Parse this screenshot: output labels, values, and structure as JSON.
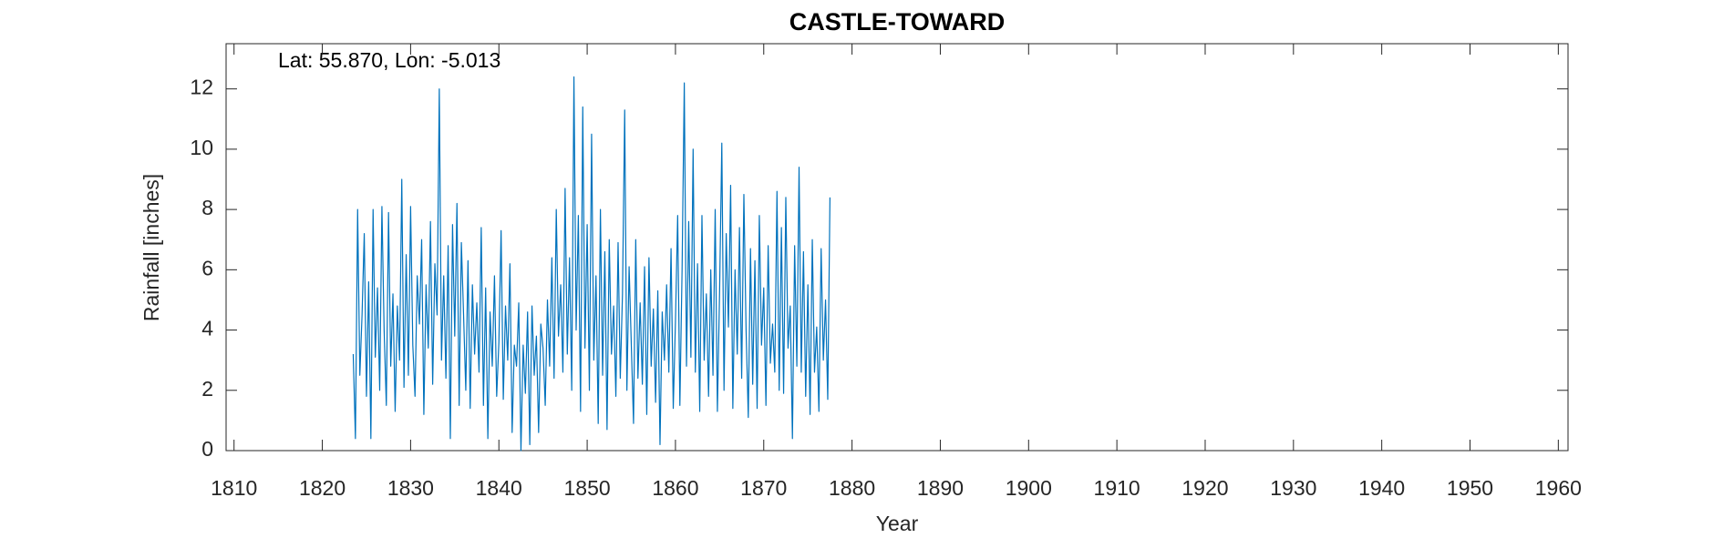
{
  "chart_data": {
    "type": "line",
    "title": "CASTLE-TOWARD",
    "annotation": "Lat: 55.870, Lon: -5.013",
    "xlabel": "Year",
    "ylabel": "Rainfall [inches]",
    "xlim": [
      1809.1,
      1961.1
    ],
    "xticks": [
      1810,
      1820,
      1830,
      1840,
      1850,
      1860,
      1870,
      1880,
      1890,
      1900,
      1910,
      1920,
      1930,
      1940,
      1950,
      1960
    ],
    "ylim": [
      0,
      13.5
    ],
    "yticks": [
      0,
      2,
      4,
      6,
      8,
      10,
      12
    ],
    "grid": false,
    "x": [
      1823.5,
      1823.75,
      1824,
      1824.25,
      1824.5,
      1824.75,
      1825,
      1825.25,
      1825.5,
      1825.75,
      1826,
      1826.25,
      1826.5,
      1826.75,
      1827,
      1827.25,
      1827.5,
      1827.75,
      1828,
      1828.25,
      1828.5,
      1828.75,
      1829,
      1829.25,
      1829.5,
      1829.75,
      1830,
      1830.25,
      1830.5,
      1830.75,
      1831,
      1831.25,
      1831.5,
      1831.75,
      1832,
      1832.25,
      1832.5,
      1832.75,
      1833,
      1833.25,
      1833.5,
      1833.75,
      1834,
      1834.25,
      1834.5,
      1834.75,
      1835,
      1835.25,
      1835.5,
      1835.75,
      1836,
      1836.25,
      1836.5,
      1836.75,
      1837,
      1837.25,
      1837.5,
      1837.75,
      1838,
      1838.25,
      1838.5,
      1838.75,
      1839,
      1839.25,
      1839.5,
      1839.75,
      1840,
      1840.25,
      1840.5,
      1840.75,
      1841,
      1841.25,
      1841.5,
      1841.75,
      1842,
      1842.25,
      1842.5,
      1842.75,
      1843,
      1843.25,
      1843.5,
      1843.75,
      1844,
      1844.25,
      1844.5,
      1844.75,
      1845,
      1845.25,
      1845.5,
      1845.75,
      1846,
      1846.25,
      1846.5,
      1846.75,
      1847,
      1847.25,
      1847.5,
      1847.75,
      1848,
      1848.25,
      1848.5,
      1848.75,
      1849,
      1849.25,
      1849.5,
      1849.75,
      1850,
      1850.25,
      1850.5,
      1850.75,
      1851,
      1851.25,
      1851.5,
      1851.75,
      1852,
      1852.25,
      1852.5,
      1852.75,
      1853,
      1853.25,
      1853.5,
      1853.75,
      1854,
      1854.25,
      1854.5,
      1854.75,
      1855,
      1855.25,
      1855.5,
      1855.75,
      1856,
      1856.25,
      1856.5,
      1856.75,
      1857,
      1857.25,
      1857.5,
      1857.75,
      1858,
      1858.25,
      1858.5,
      1858.75,
      1859,
      1859.25,
      1859.5,
      1859.75,
      1860,
      1860.25,
      1860.5,
      1860.75,
      1861,
      1861.25,
      1861.5,
      1861.75,
      1862,
      1862.25,
      1862.5,
      1862.75,
      1863,
      1863.25,
      1863.5,
      1863.75,
      1864,
      1864.25,
      1864.5,
      1864.75,
      1865,
      1865.25,
      1865.5,
      1865.75,
      1866,
      1866.25,
      1866.5,
      1866.75,
      1867,
      1867.25,
      1867.5,
      1867.75,
      1868,
      1868.25,
      1868.5,
      1868.75,
      1869,
      1869.25,
      1869.5,
      1869.75,
      1870,
      1870.25,
      1870.5,
      1870.75,
      1871,
      1871.25,
      1871.5,
      1871.75,
      1872,
      1872.25,
      1872.5,
      1872.75,
      1873,
      1873.25,
      1873.5,
      1873.75,
      1874,
      1874.25,
      1874.5,
      1874.75,
      1875,
      1875.25,
      1875.5,
      1875.75,
      1876,
      1876.25,
      1876.5,
      1876.75,
      1877,
      1877.25,
      1877.5
    ],
    "series": [
      {
        "color": "#0072bd",
        "values": [
          3.2,
          0.4,
          8.0,
          2.5,
          4.5,
          7.2,
          1.8,
          5.6,
          0.4,
          8.0,
          3.1,
          5.4,
          2.0,
          8.1,
          4.0,
          1.5,
          7.9,
          2.8,
          5.2,
          1.3,
          4.8,
          3.0,
          9.0,
          2.1,
          6.5,
          2.5,
          8.1,
          3.5,
          1.8,
          5.8,
          4.2,
          7.0,
          1.2,
          5.5,
          3.4,
          7.6,
          2.2,
          6.2,
          4.5,
          12.0,
          3.0,
          5.8,
          2.4,
          6.8,
          0.4,
          7.5,
          3.8,
          8.2,
          1.5,
          6.9,
          4.5,
          2.0,
          6.3,
          1.4,
          5.5,
          3.2,
          4.9,
          2.6,
          7.4,
          1.5,
          5.4,
          0.4,
          4.6,
          2.8,
          5.8,
          1.8,
          3.6,
          7.3,
          1.7,
          4.8,
          3.0,
          6.2,
          0.6,
          3.5,
          2.8,
          4.9,
          0.0,
          3.5,
          1.9,
          4.6,
          0.2,
          4.8,
          2.5,
          3.8,
          0.6,
          4.2,
          3.4,
          1.5,
          5.0,
          2.8,
          6.4,
          2.4,
          8.0,
          3.8,
          5.5,
          2.6,
          8.7,
          3.2,
          6.4,
          2.0,
          12.4,
          4.0,
          7.8,
          1.3,
          11.4,
          3.4,
          7.5,
          2.0,
          10.5,
          3.0,
          5.8,
          0.9,
          8.0,
          2.5,
          6.6,
          0.7,
          7.0,
          3.2,
          4.8,
          1.8,
          6.9,
          2.4,
          5.2,
          11.3,
          2.0,
          6.1,
          3.5,
          0.9,
          7.0,
          2.4,
          4.9,
          2.2,
          6.1,
          1.2,
          6.4,
          2.8,
          4.7,
          1.6,
          5.3,
          0.2,
          4.6,
          3.0,
          5.5,
          2.6,
          6.7,
          1.4,
          4.3,
          7.8,
          1.5,
          6.0,
          12.2,
          2.8,
          7.6,
          3.1,
          10.0,
          2.6,
          6.2,
          1.3,
          7.8,
          3.0,
          5.2,
          1.8,
          6.0,
          2.5,
          8.0,
          1.3,
          5.3,
          10.2,
          2.0,
          7.2,
          4.1,
          8.8,
          1.4,
          6.0,
          3.2,
          7.4,
          2.4,
          8.5,
          4.0,
          1.1,
          6.7,
          2.2,
          6.3,
          1.4,
          7.8,
          3.5,
          5.4,
          1.5,
          6.8,
          2.9,
          4.2,
          2.6,
          8.6,
          2.0,
          7.4,
          1.9,
          8.4,
          3.4,
          4.8,
          0.4,
          6.8,
          2.8,
          9.4,
          2.6,
          6.6,
          1.8,
          5.5,
          1.2,
          7.0,
          2.6,
          4.1,
          1.3,
          6.7,
          3.0,
          5.0,
          1.7,
          8.4
        ]
      }
    ]
  }
}
